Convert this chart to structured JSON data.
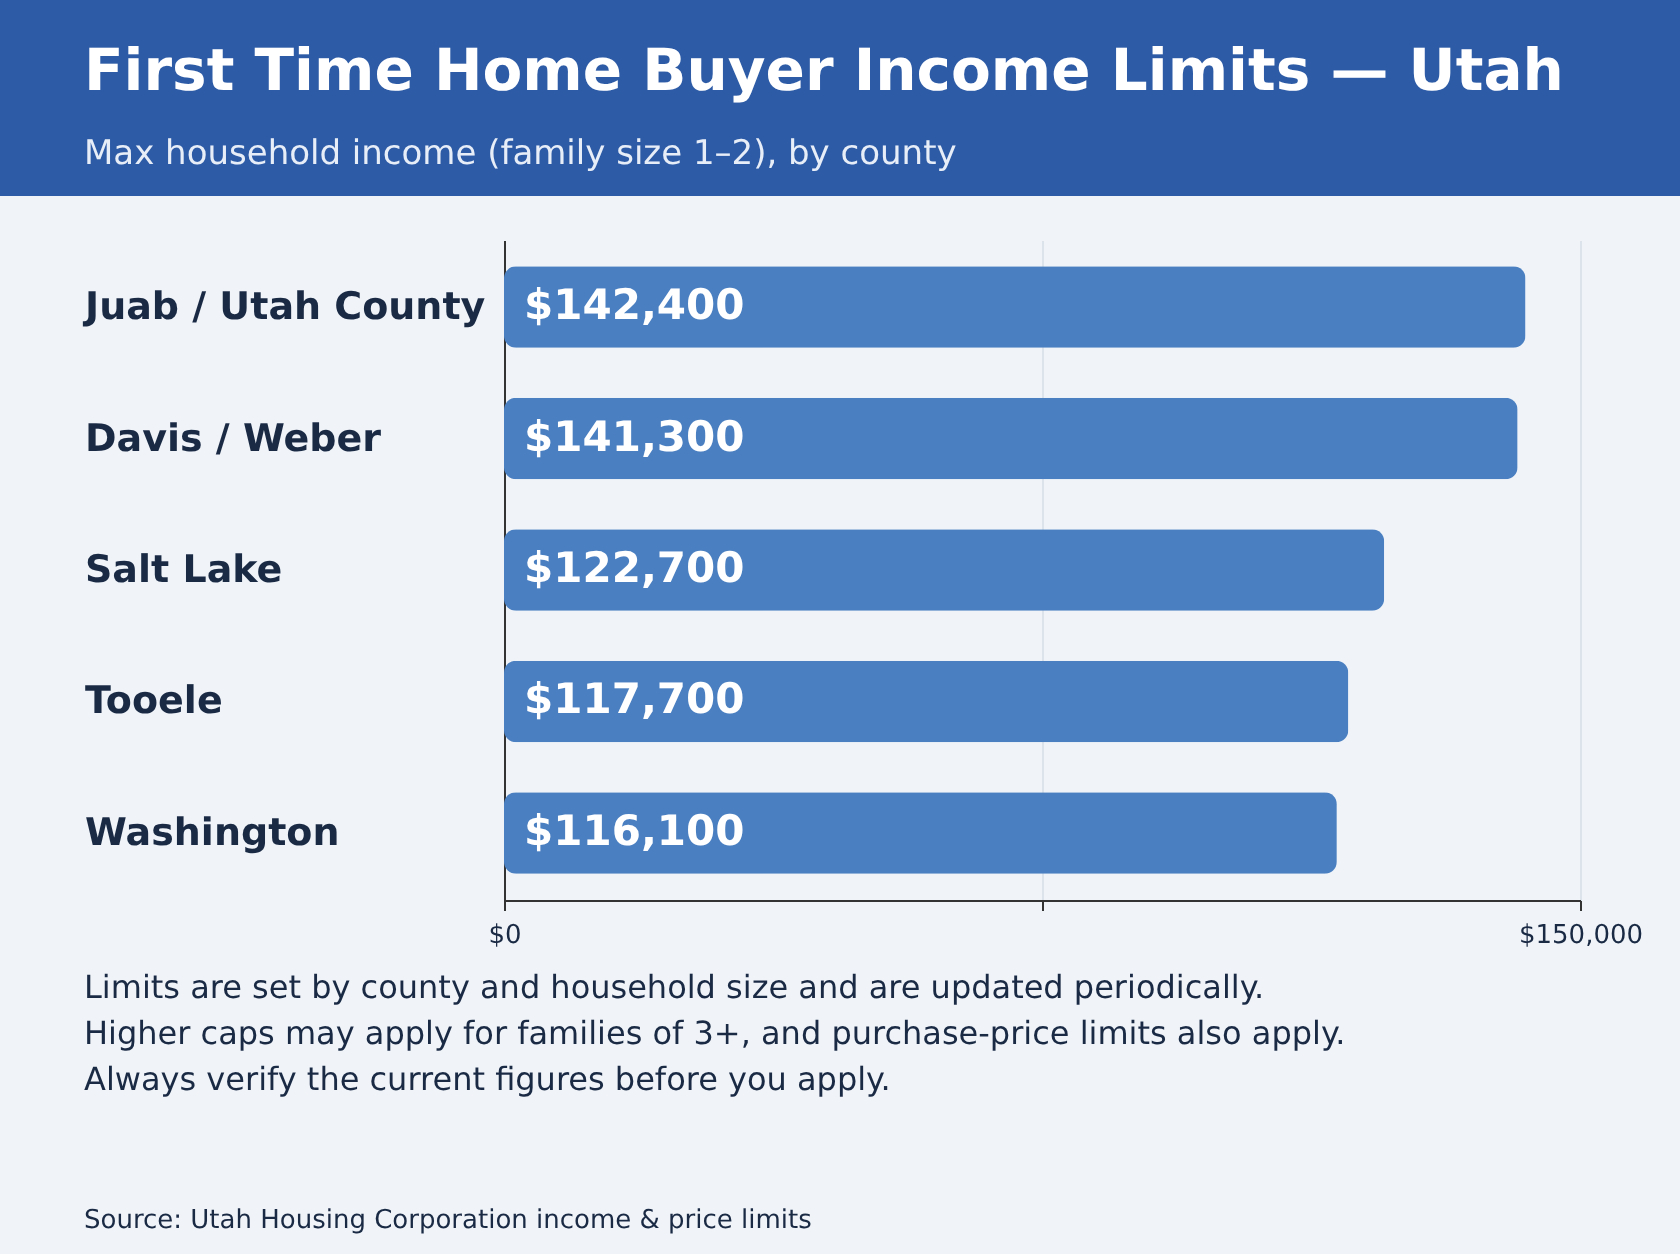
{
  "chart_data": {
    "type": "bar",
    "orientation": "horizontal",
    "title": "First Time Home Buyer Income Limits — Utah",
    "subtitle": "Max household income (family size 1–2), by county",
    "categories": [
      "Juab / Utah County",
      "Davis / Weber",
      "Salt Lake",
      "Tooele",
      "Washington"
    ],
    "values": [
      142400,
      141300,
      122700,
      117700,
      116100
    ],
    "value_labels": [
      "$142,400",
      "$141,300",
      "$122,700",
      "$117,700",
      "$116,100"
    ],
    "color": "#4a7fc1",
    "xlim": [
      0,
      150000
    ],
    "xticks": [
      {
        "value": 0,
        "label": "$0"
      },
      {
        "value": 75000,
        "label": null
      },
      {
        "value": 150000,
        "label": "$150,000"
      }
    ],
    "grid": "x",
    "annotations": [
      "Limits are set by county and household size and are updated periodically.",
      "Higher caps may apply for families of 3+, and purchase-price limits also apply.",
      "Always verify the current figures before you apply.",
      "Source: Utah Housing Corporation income & price limits"
    ]
  }
}
